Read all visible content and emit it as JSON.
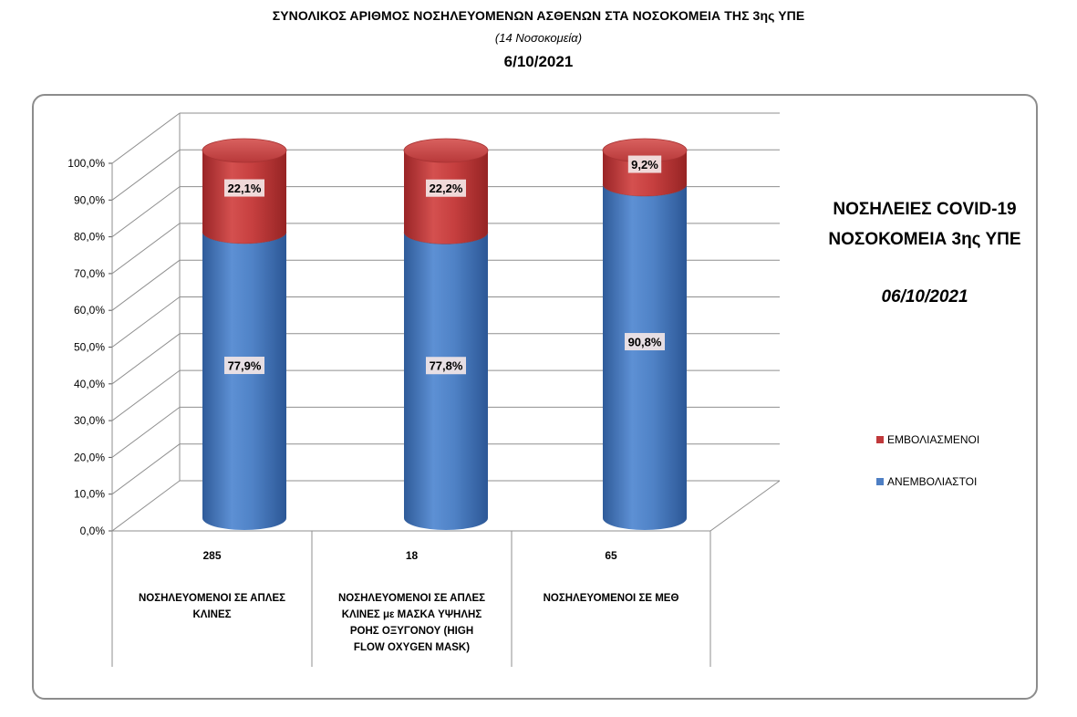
{
  "header": {
    "title": "ΣΥΝΟΛΙΚΟΣ ΑΡΙΘΜΟΣ ΝΟΣΗΛΕΥΟΜΕΝΩΝ ΑΣΘΕΝΩΝ ΣΤΑ ΝΟΣΟΚΟΜΕΙΑ ΤΗΣ 3ης ΥΠΕ",
    "subtitle": "(14 Νοσοκομεία)",
    "date": "6/10/2021"
  },
  "chart_data": {
    "type": "bar",
    "stacked": true,
    "orientation": "vertical",
    "style": "3d-cylinder",
    "ylim": [
      0,
      100
    ],
    "yticks": [
      "0,0%",
      "10,0%",
      "20,0%",
      "30,0%",
      "40,0%",
      "50,0%",
      "60,0%",
      "70,0%",
      "80,0%",
      "90,0%",
      "100,0%"
    ],
    "grid": true,
    "categories": [
      {
        "count": "285",
        "label": "ΝΟΣΗΛΕΥΟΜΕΝΟΙ ΣΕ ΑΠΛΕΣ ΚΛΙΝΕΣ"
      },
      {
        "count": "18",
        "label": "ΝΟΣΗΛΕΥΟΜΕΝΟΙ ΣΕ ΑΠΛΕΣ ΚΛΙΝΕΣ με ΜΑΣΚΑ ΥΨΗΛΗΣ ΡΟΗΣ ΟΞΥΓΟΝΟΥ (HIGH FLOW OXYGEN MASK)"
      },
      {
        "count": "65",
        "label": "ΝΟΣΗΛΕΥΟΜΕΝΟΙ ΣΕ ΜΕΘ"
      }
    ],
    "series": [
      {
        "name": "ΑΝΕΜΒΟΛΙΑΣΤΟΙ",
        "color": "#4e7fc4",
        "values": [
          77.9,
          77.8,
          90.8
        ],
        "labels": [
          "77,9%",
          "77,8%",
          "90,8%"
        ]
      },
      {
        "name": "ΕΜΒΟΛΙΑΣΜΕΝΟΙ",
        "color": "#c0393b",
        "values": [
          22.1,
          22.2,
          9.2
        ],
        "labels": [
          "22,1%",
          "22,2%",
          "9,2%"
        ]
      }
    ],
    "legend": {
      "position": "right",
      "items": [
        "ΕΜΒΟΛΙΑΣΜΕΝΟΙ",
        "ΑΝΕΜΒΟΛΙΑΣΤΟΙ"
      ]
    },
    "side_title": {
      "line1": "ΝΟΣΗΛΕΙΕΣ COVID-19",
      "line2": "ΝΟΣΟΚΟΜΕΙΑ 3ης ΥΠΕ",
      "date": "06/10/2021"
    }
  }
}
